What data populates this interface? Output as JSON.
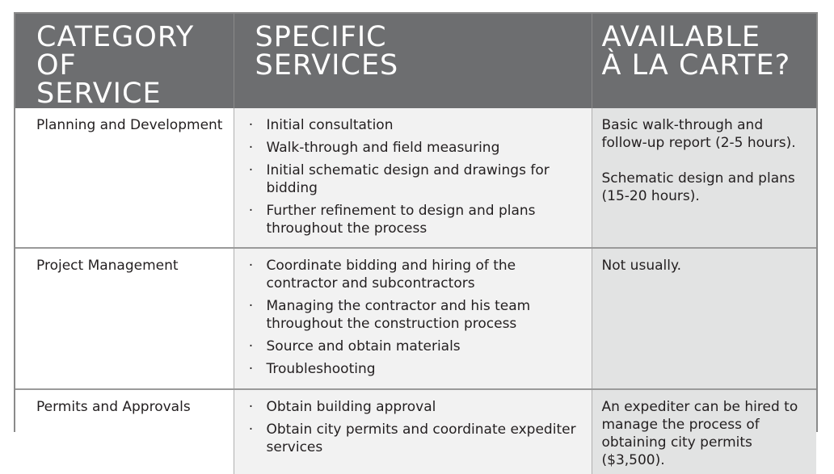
{
  "headers": [
    [
      "CATEGORY OF",
      "SERVICE"
    ],
    [
      "SPECIFIC",
      "SERVICES"
    ],
    [
      "AVAILABLE",
      "À LA CARTE?"
    ]
  ],
  "rows": [
    {
      "category": "Planning and Development",
      "services": [
        "Initial consultation",
        "Walk-through and field measuring",
        "Initial schematic design and drawings for bidding",
        "Further refinement to design and plans throughout the process"
      ],
      "a_la_carte": [
        "Basic walk-through and follow-up report (2-5 hours).",
        "Schematic design and plans (15-20 hours)."
      ]
    },
    {
      "category": "Project Management",
      "services": [
        "Coordinate bidding and hiring of the contractor and subcontractors",
        "Managing the contractor and his team throughout the construction process",
        "Source and obtain materials",
        "Troubleshooting"
      ],
      "a_la_carte": [
        "Not usually."
      ]
    },
    {
      "category": "Permits and Approvals",
      "services": [
        "Obtain building approval",
        "Obtain city permits and coordinate expediter services"
      ],
      "a_la_carte": [
        "An expediter can be hired to manage the process of obtaining city permits ($3,500)."
      ]
    }
  ],
  "colors": {
    "header_bg": "#6d6e70",
    "col1_bg": "#ffffff",
    "col2_bg": "#f2f2f2",
    "col3_bg": "#e2e3e3",
    "border": "#8a8a8a"
  }
}
